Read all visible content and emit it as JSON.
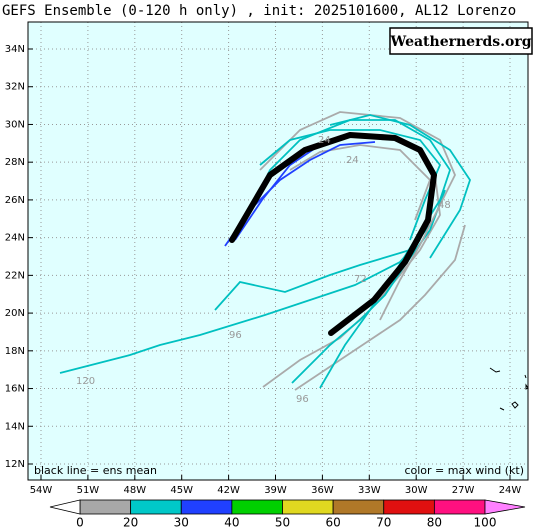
{
  "title": "GEFS Ensemble (0-120 h only) , init: 2025101600, AL12 Lorenzo",
  "watermark": "Weathernerds.org",
  "legend_left": "black line = ens mean",
  "legend_right": "color = max wind (kt)",
  "lat_ticks": [
    {
      "value": 34,
      "label": "34N"
    },
    {
      "value": 32,
      "label": "32N"
    },
    {
      "value": 30,
      "label": "30N"
    },
    {
      "value": 28,
      "label": "28N"
    },
    {
      "value": 26,
      "label": "26N"
    },
    {
      "value": 24,
      "label": "24N"
    },
    {
      "value": 22,
      "label": "22N"
    },
    {
      "value": 20,
      "label": "20N"
    },
    {
      "value": 18,
      "label": "18N"
    },
    {
      "value": 16,
      "label": "16N"
    },
    {
      "value": 14,
      "label": "14N"
    },
    {
      "value": 12,
      "label": "12N"
    }
  ],
  "lon_ticks": [
    {
      "value": -54,
      "label": "54W"
    },
    {
      "value": -51,
      "label": "51W"
    },
    {
      "value": -48,
      "label": "48W"
    },
    {
      "value": -45,
      "label": "45W"
    },
    {
      "value": -42,
      "label": "42W"
    },
    {
      "value": -39,
      "label": "39W"
    },
    {
      "value": -36,
      "label": "36W"
    },
    {
      "value": -33,
      "label": "33W"
    },
    {
      "value": -30,
      "label": "30W"
    },
    {
      "value": -27,
      "label": "27W"
    },
    {
      "value": -24,
      "label": "24W"
    }
  ],
  "track_labels": [
    "24",
    "24",
    "48",
    "72",
    "96",
    "120",
    "96"
  ],
  "colorbar": {
    "ticks": [
      0,
      20,
      30,
      40,
      50,
      60,
      70,
      80,
      100
    ],
    "colors": [
      "#a8a8a8",
      "#00c8c8",
      "#2040ff",
      "#00d000",
      "#e0d820",
      "#b07828",
      "#e01010",
      "#ff1080"
    ],
    "under_color": "#ffffff",
    "over_color": "#ff80ff"
  }
}
